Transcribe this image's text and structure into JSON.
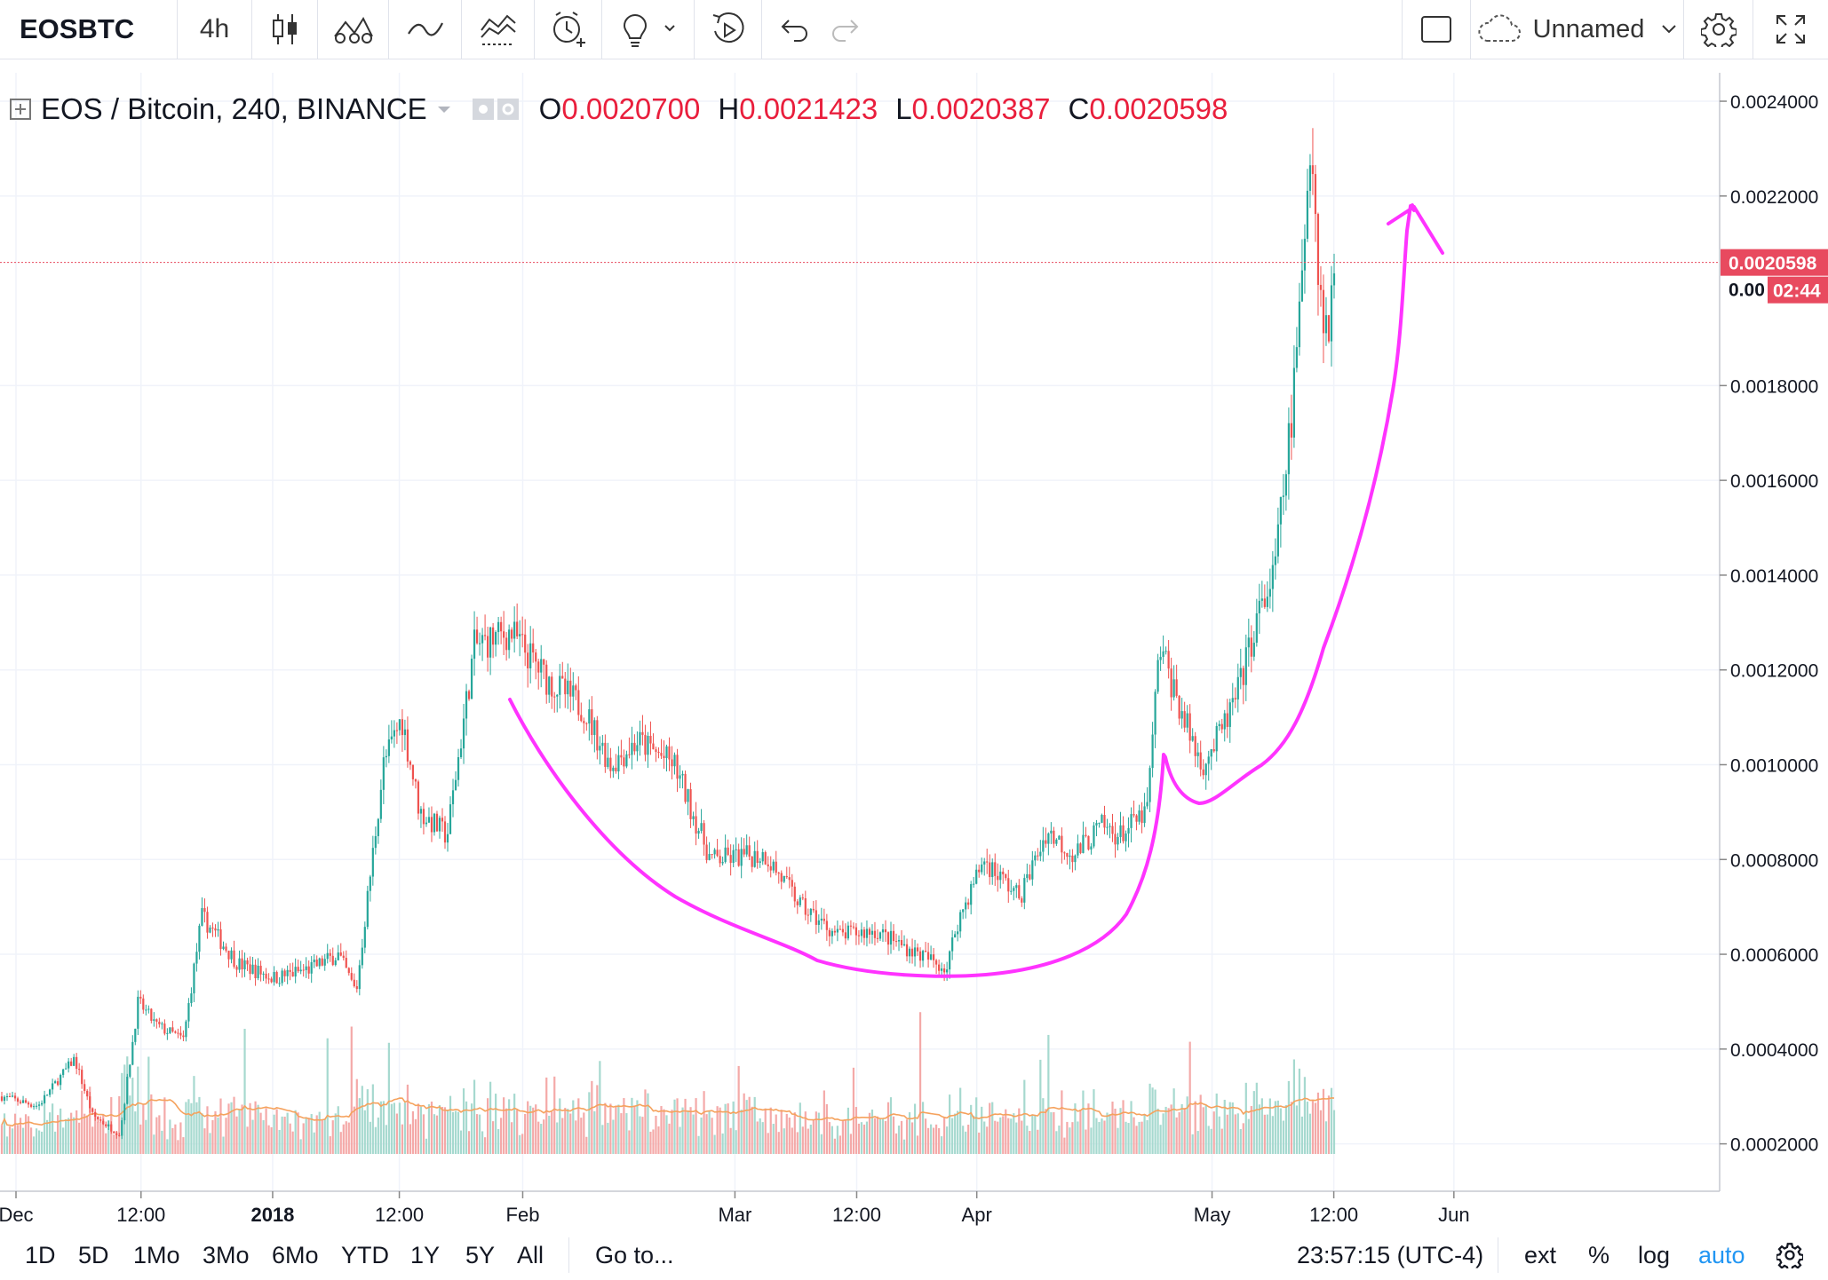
{
  "toolbar": {
    "symbol": "EOSBTC",
    "interval": "4h",
    "layout_name": "Unnamed"
  },
  "legend": {
    "title": "EOS / Bitcoin, 240, BINANCE",
    "open_label": "O",
    "open": "0.0020700",
    "high_label": "H",
    "high": "0.0021423",
    "low_label": "L",
    "low": "0.0020387",
    "close_label": "C",
    "close": "0.0020598"
  },
  "price_tag": {
    "price": "0.0020598",
    "countdown": "02:44",
    "partial": "0.00"
  },
  "bottombar": {
    "ranges": [
      "1D",
      "5D",
      "1Mo",
      "3Mo",
      "6Mo",
      "YTD",
      "1Y",
      "5Y",
      "All"
    ],
    "goto": "Go to...",
    "time": "23:57:15 (UTC-4)",
    "ext": "ext",
    "percent": "%",
    "log": "log",
    "auto": "auto"
  },
  "colors": {
    "up": "#26a69a",
    "down": "#ef5350",
    "drawing": "#ff33ff",
    "tag": "#e84a5f",
    "volume_up": "#a6d9cf",
    "volume_down": "#f4a9a8",
    "ma": "#f5a25d"
  },
  "chart_data": {
    "type": "candlestick",
    "ylim": [
      0.0001,
      0.00246
    ],
    "y_ticks": [
      "0.0024000",
      "0.0022000",
      "0.0018000",
      "0.0016000",
      "0.0014000",
      "0.0012000",
      "0.0010000",
      "0.0008000",
      "0.0006000",
      "0.0004000",
      "0.0002000"
    ],
    "y_tick_values": [
      0.0024,
      0.0022,
      0.0018,
      0.0016,
      0.0014,
      0.0012,
      0.001,
      0.0008,
      0.0006,
      0.0004,
      0.0002
    ],
    "x_ticks": [
      "Dec",
      "12:00",
      "2018",
      "12:00",
      "Feb",
      "Mar",
      "12:00",
      "Apr",
      "May",
      "12:00",
      "Jun"
    ],
    "x_tick_pos": [
      0,
      0.076,
      0.156,
      0.233,
      0.308,
      0.437,
      0.511,
      0.584,
      0.727,
      0.801,
      0.874
    ],
    "last_price": 0.0020598,
    "price_path": [
      [
        0.0,
        0.0003
      ],
      [
        0.02,
        0.00028
      ],
      [
        0.04,
        0.00038
      ],
      [
        0.05,
        0.00026
      ],
      [
        0.065,
        0.00022
      ],
      [
        0.075,
        0.0005
      ],
      [
        0.085,
        0.00045
      ],
      [
        0.1,
        0.00042
      ],
      [
        0.11,
        0.00068
      ],
      [
        0.13,
        0.00058
      ],
      [
        0.15,
        0.00055
      ],
      [
        0.17,
        0.00057
      ],
      [
        0.185,
        0.0006
      ],
      [
        0.195,
        0.00052
      ],
      [
        0.21,
        0.001
      ],
      [
        0.22,
        0.0011
      ],
      [
        0.23,
        0.0009
      ],
      [
        0.245,
        0.00085
      ],
      [
        0.26,
        0.00125
      ],
      [
        0.28,
        0.00128
      ],
      [
        0.3,
        0.00118
      ],
      [
        0.32,
        0.00112
      ],
      [
        0.335,
        0.001
      ],
      [
        0.35,
        0.00105
      ],
      [
        0.37,
        0.001
      ],
      [
        0.39,
        0.0008
      ],
      [
        0.42,
        0.00081
      ],
      [
        0.44,
        0.0007
      ],
      [
        0.46,
        0.00064
      ],
      [
        0.48,
        0.00065
      ],
      [
        0.505,
        0.0006
      ],
      [
        0.52,
        0.00057
      ],
      [
        0.525,
        0.00066
      ],
      [
        0.54,
        0.0008
      ],
      [
        0.56,
        0.00072
      ],
      [
        0.575,
        0.00086
      ],
      [
        0.59,
        0.00081
      ],
      [
        0.605,
        0.00087
      ],
      [
        0.615,
        0.00085
      ],
      [
        0.63,
        0.0009
      ],
      [
        0.637,
        0.00125
      ],
      [
        0.65,
        0.0011
      ],
      [
        0.66,
        0.001
      ],
      [
        0.67,
        0.00106
      ],
      [
        0.68,
        0.00115
      ],
      [
        0.69,
        0.0013
      ],
      [
        0.7,
        0.0014
      ],
      [
        0.71,
        0.00175
      ],
      [
        0.715,
        0.002
      ],
      [
        0.72,
        0.00235
      ],
      [
        0.725,
        0.002
      ],
      [
        0.73,
        0.0019
      ],
      [
        0.733,
        0.00206
      ]
    ]
  }
}
